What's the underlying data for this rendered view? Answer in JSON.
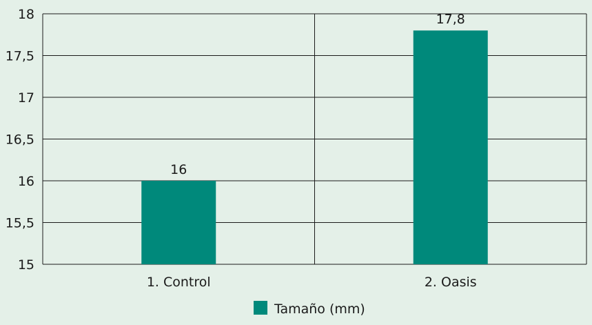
{
  "chart_data": {
    "type": "bar",
    "categories": [
      "1. Control",
      "2. Oasis"
    ],
    "series": [
      {
        "name": "Tamaño (mm)",
        "values": [
          16,
          17.8
        ],
        "labels": [
          "16",
          "17,8"
        ]
      }
    ],
    "ylim": [
      15,
      18
    ],
    "yticks": [
      15,
      15.5,
      16,
      16.5,
      17,
      17.5,
      18
    ],
    "ytick_labels": [
      "15",
      "15,5",
      "16",
      "16,5",
      "17",
      "17,5",
      "18"
    ],
    "grid": true,
    "legend_position": "bottom-center",
    "colors": {
      "bar": "#00897b",
      "background": "#e4f0e8",
      "axis": "#1a1a1a"
    }
  }
}
